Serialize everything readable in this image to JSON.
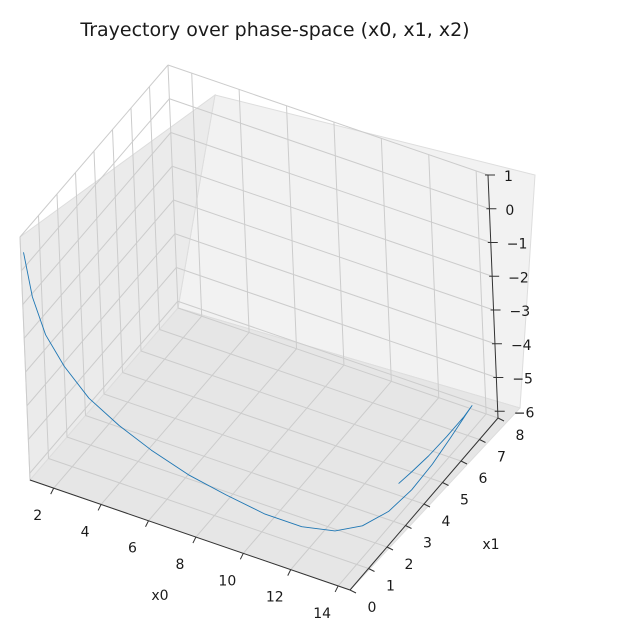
{
  "chart_data": {
    "type": "line",
    "projection": "3d",
    "title": "Trayectory over phase-space (x0, x1, x2)",
    "xlabel": "x0",
    "ylabel": "x1",
    "zlabel": "",
    "xlim": [
      1,
      14.5
    ],
    "ylim": [
      0,
      8
    ],
    "zlim": [
      -6.2,
      1
    ],
    "xticks": [
      "2",
      "4",
      "6",
      "8",
      "10",
      "12",
      "14"
    ],
    "yticks": [
      "0",
      "1",
      "2",
      "3",
      "4",
      "5",
      "6",
      "7",
      "8"
    ],
    "zticks": [
      "1",
      "0",
      "−1",
      "−2",
      "−3",
      "−4",
      "−5",
      "−6"
    ],
    "grid": true,
    "series": [
      {
        "color": "#1f77b4",
        "points": [
          [
            1.0,
            0.15,
            0.45
          ],
          [
            1.3,
            0.15,
            -0.8
          ],
          [
            1.8,
            0.15,
            -1.8
          ],
          [
            2.5,
            0.2,
            -2.6
          ],
          [
            3.5,
            0.2,
            -3.3
          ],
          [
            4.7,
            0.25,
            -3.85
          ],
          [
            6.0,
            0.3,
            -4.3
          ],
          [
            7.5,
            0.35,
            -4.7
          ],
          [
            9.0,
            0.45,
            -5.0
          ],
          [
            10.5,
            0.6,
            -5.3
          ],
          [
            11.8,
            0.9,
            -5.55
          ],
          [
            12.8,
            1.4,
            -5.75
          ],
          [
            13.4,
            2.1,
            -5.9
          ],
          [
            13.8,
            3.0,
            -5.95
          ],
          [
            14.0,
            4.0,
            -5.9
          ],
          [
            14.1,
            5.0,
            -5.75
          ],
          [
            14.1,
            6.0,
            -5.6
          ],
          [
            14.05,
            6.9,
            -5.5
          ],
          [
            13.95,
            7.35,
            -5.55
          ],
          [
            13.8,
            7.1,
            -5.75
          ],
          [
            13.6,
            6.4,
            -5.95
          ],
          [
            13.45,
            5.6,
            -6.05
          ],
          [
            13.3,
            4.9,
            -6.1
          ],
          [
            13.2,
            4.3,
            -6.1
          ]
        ]
      }
    ]
  }
}
